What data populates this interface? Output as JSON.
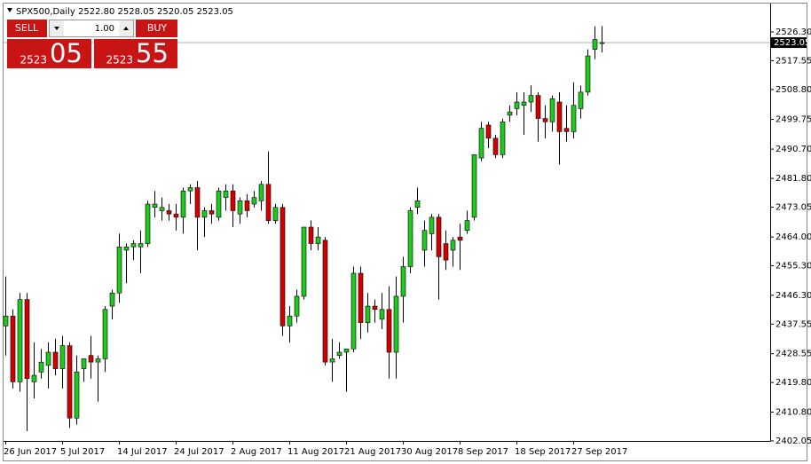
{
  "chart_data": {
    "type": "candlestick",
    "symbol_info": "SPX500,Daily 2522.80 2528.05 2520.05 2523.05",
    "categories": [
      "26 Jun 2017",
      null,
      null,
      null,
      null,
      null,
      null,
      null,
      "5 Jul 2017",
      null,
      null,
      null,
      null,
      null,
      null,
      null,
      "14 Jul 2017",
      null,
      null,
      null,
      null,
      null,
      null,
      null,
      "24 Jul 2017",
      null,
      null,
      null,
      null,
      null,
      null,
      null,
      "2 Aug 2017",
      null,
      null,
      null,
      null,
      null,
      null,
      null,
      "11 Aug 2017",
      null,
      null,
      null,
      null,
      null,
      null,
      null,
      "21 Aug 2017",
      null,
      null,
      null,
      null,
      null,
      null,
      null,
      "30 Aug 2017",
      null,
      null,
      null,
      null,
      null,
      null,
      null,
      "8 Sep 2017",
      null,
      null,
      null,
      null,
      null,
      null,
      null,
      "18 Sep 2017",
      null,
      null,
      null,
      null,
      null,
      null,
      null,
      "27 Sep 2017",
      null,
      null,
      null,
      null
    ],
    "open": [
      2437,
      2440,
      2420,
      2445,
      2420,
      2423,
      2425,
      2429,
      2424,
      2431,
      2409,
      2424,
      2428,
      2426,
      2427,
      2443,
      2447,
      2460,
      2461,
      2461,
      2462,
      2473,
      2472,
      2472,
      2471,
      2470,
      2478,
      2479,
      2470,
      2472,
      2470,
      2476,
      2478,
      2471,
      2475,
      2474,
      2475,
      2480,
      2469,
      2473,
      2437,
      2440,
      2446,
      2467,
      2462,
      2463,
      2426,
      2428,
      2429,
      2430,
      2453,
      2438,
      2443,
      2439,
      2442,
      2429,
      2446,
      2455,
      2473,
      2460,
      2465,
      2470,
      2462,
      2460,
      2464,
      2466,
      2470,
      2488,
      2498,
      2494,
      2489,
      2501,
      2503,
      2504,
      2505,
      2507,
      2500,
      2499,
      2505,
      2497,
      2496,
      2503,
      2508,
      2521,
      2522.8
    ],
    "high": [
      2452,
      2442,
      2447,
      2447,
      2432,
      2430,
      2432,
      2433,
      2434,
      2432,
      2428,
      2427,
      2434,
      2428,
      2443,
      2448,
      2465,
      2462,
      2463,
      2466,
      2475,
      2478,
      2476,
      2474,
      2474,
      2479,
      2480,
      2481,
      2473,
      2474,
      2479,
      2480,
      2480,
      2476,
      2477,
      2478,
      2481,
      2490,
      2474,
      2474,
      2443,
      2448,
      2467,
      2469,
      2467,
      2464,
      2433,
      2432,
      2430,
      2455,
      2455,
      2447,
      2445,
      2447,
      2449,
      2452,
      2458,
      2473,
      2479,
      2469,
      2471,
      2471,
      2466,
      2464,
      2468,
      2472,
      2489,
      2499,
      2499,
      2495,
      2500,
      2504,
      2508,
      2508,
      2510,
      2508,
      2504,
      2507,
      2508,
      2504,
      2511,
      2510,
      2521,
      2528,
      2528.05
    ],
    "low": [
      2428,
      2418,
      2417,
      2405,
      2415,
      2421,
      2418,
      2422,
      2418,
      2406,
      2407,
      2420,
      2421,
      2414,
      2423,
      2439,
      2444,
      2450,
      2457,
      2453,
      2461,
      2470,
      2469,
      2469,
      2466,
      2465,
      2474,
      2460,
      2464,
      2468,
      2469,
      2472,
      2467,
      2468,
      2470,
      2473,
      2472,
      2468,
      2468,
      2434,
      2432,
      2438,
      2445,
      2460,
      2460,
      2425,
      2420,
      2427,
      2417,
      2429,
      2433,
      2435,
      2438,
      2436,
      2421,
      2421,
      2438,
      2453,
      2471,
      2455,
      2460,
      2445,
      2454,
      2455,
      2454,
      2465,
      2469,
      2487,
      2491,
      2488,
      2488,
      2499,
      2501,
      2495,
      2502,
      2493,
      2494,
      2496,
      2486,
      2493,
      2494,
      2500,
      2507,
      2518,
      2520.05
    ],
    "close": [
      2440,
      2420,
      2445,
      2421,
      2422,
      2426,
      2429,
      2424,
      2431,
      2409,
      2423,
      2427,
      2426,
      2427,
      2442,
      2447,
      2461,
      2461,
      2462,
      2462,
      2474,
      2474,
      2473,
      2471,
      2470,
      2478,
      2479,
      2470,
      2472,
      2471,
      2478,
      2478,
      2472,
      2475,
      2472,
      2476,
      2480,
      2469,
      2473,
      2437,
      2440,
      2446,
      2467,
      2462,
      2464,
      2426,
      2427,
      2429,
      2430,
      2453,
      2438,
      2443,
      2442,
      2442,
      2429,
      2446,
      2455,
      2472,
      2475,
      2466,
      2470,
      2458,
      2457,
      2463,
      2463,
      2469,
      2489,
      2497,
      2494,
      2489,
      2499,
      2502,
      2505,
      2505,
      2507,
      2500,
      2499,
      2506,
      2496,
      2496,
      2504,
      2508,
      2519,
      2524,
      2523.05
    ],
    "up_color": "#1ec81e",
    "down_color": "#d40000",
    "wick_color": "#000000",
    "ylim": [
      2402.05,
      2534.65
    ],
    "yticks": [
      {
        "value": 2526.3,
        "label": "2526.30"
      },
      2517.55,
      {
        "value": 2508.8,
        "label": "2508.80"
      },
      2499.75,
      {
        "value": 2490.7,
        "label": "2490.70"
      },
      {
        "value": 2481.8,
        "label": "2481.80"
      },
      2473.05,
      {
        "value": 2464,
        "label": "2464.00"
      },
      {
        "value": 2455.3,
        "label": "2455.30"
      },
      {
        "value": 2446.3,
        "label": "2446.30"
      },
      2437.55,
      2428.55,
      {
        "value": 2419.8,
        "label": "2419.80"
      },
      {
        "value": 2410.8,
        "label": "2410.80"
      },
      2402.05
    ],
    "last_price": {
      "value": 2523.05,
      "label": "2523.05"
    },
    "grid": false
  },
  "trade_panel": {
    "sell": "SELL",
    "buy": "BUY",
    "lots": "1.00",
    "bid_big": "2523",
    "bid_small": "05",
    "ask_big": "2523",
    "ask_small": "55"
  }
}
